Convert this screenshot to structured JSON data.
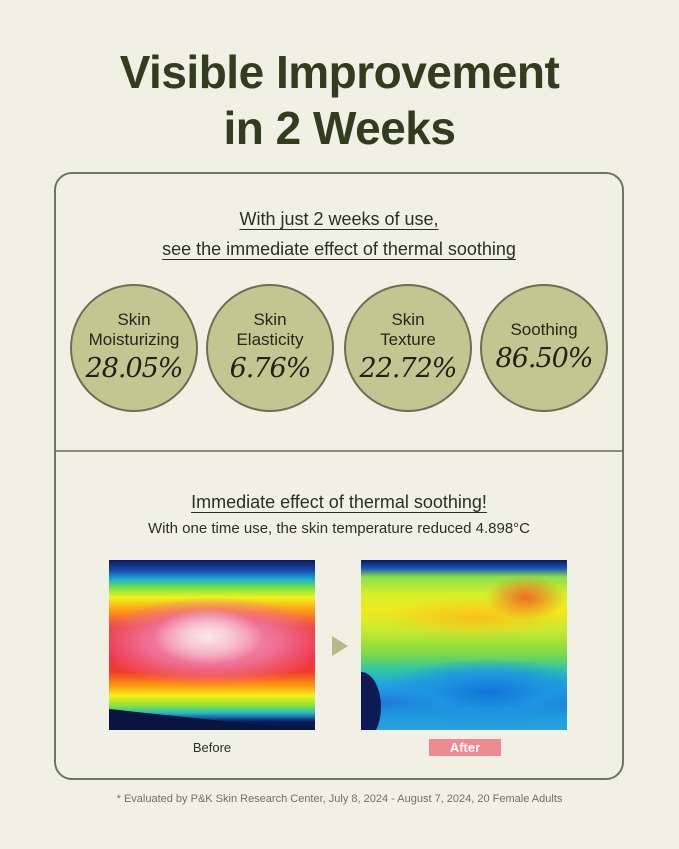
{
  "header": {
    "title_line1": "Visible Improvement",
    "title_line2": "in 2 Weeks"
  },
  "results": {
    "intro_line1": "With just 2 weeks of use,",
    "intro_line2": "see the immediate effect of thermal soothing",
    "metrics": [
      {
        "label_line1": "Skin",
        "label_line2": "Moisturizing",
        "value": "28.05%"
      },
      {
        "label_line1": "Skin",
        "label_line2": "Elasticity",
        "value": "6.76%"
      },
      {
        "label_line1": "Skin",
        "label_line2": "Texture",
        "value": "22.72%"
      },
      {
        "label_line1": "Soothing",
        "label_line2": "",
        "value": "86.50%"
      }
    ]
  },
  "thermal": {
    "title": "Immediate effect of thermal soothing!",
    "subtitle": "With one time use, the skin temperature reduced 4.898°C",
    "before_label": "Before",
    "after_label": "After"
  },
  "footnote": "* Evaluated by P&K Skin Research Center, July 8, 2024 - August 7, 2024, 20 Female Adults",
  "colors": {
    "background": "#f1f0e5",
    "title": "#343c1f",
    "circle_fill": "#c4c691",
    "after_badge": "#ee8a90"
  },
  "icons": [
    "play-arrow-icon"
  ]
}
